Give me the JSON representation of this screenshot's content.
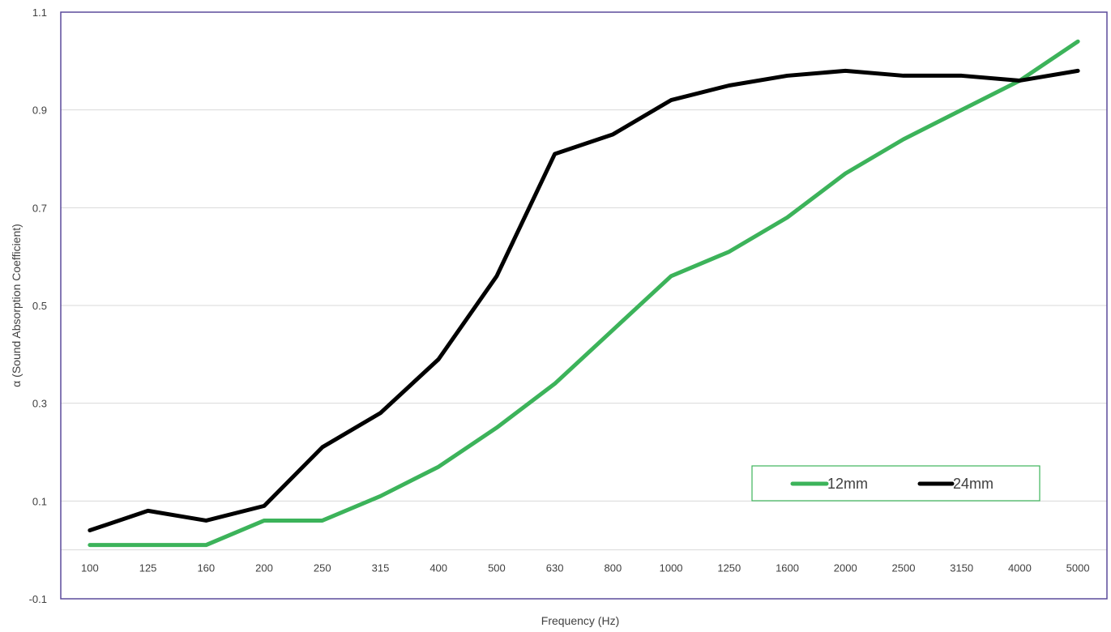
{
  "chart_data": {
    "type": "line",
    "title": "",
    "xlabel": "Frequency (Hz)",
    "ylabel": "α (Sound Absorption Coefficient)",
    "ylim": [
      -0.1,
      1.1
    ],
    "yticks": [
      "1.1",
      "0.9",
      "0.7",
      "0.5",
      "0.3",
      "0.1",
      "-0.1"
    ],
    "ytick_values": [
      1.1,
      0.9,
      0.7,
      0.5,
      0.3,
      0.1,
      -0.1
    ],
    "categories": [
      "100",
      "125",
      "160",
      "200",
      "250",
      "315",
      "400",
      "500",
      "630",
      "800",
      "1000",
      "1250",
      "1600",
      "2000",
      "2500",
      "3150",
      "4000",
      "5000"
    ],
    "grid": true,
    "legend_position": "bottom-right",
    "series": [
      {
        "name": "12mm",
        "color": "#3cb35a",
        "values": [
          0.01,
          0.01,
          0.01,
          0.06,
          0.06,
          0.11,
          0.17,
          0.25,
          0.34,
          0.45,
          0.56,
          0.61,
          0.68,
          0.77,
          0.84,
          0.9,
          0.96,
          1.04
        ]
      },
      {
        "name": "24mm",
        "color": "#000000",
        "values": [
          0.04,
          0.08,
          0.06,
          0.09,
          0.21,
          0.28,
          0.39,
          0.56,
          0.81,
          0.85,
          0.92,
          0.95,
          0.97,
          0.98,
          0.97,
          0.97,
          0.96,
          0.98
        ]
      }
    ]
  },
  "colors": {
    "plot_border": "#5b4a9b",
    "grid": "#d9d9d9"
  }
}
